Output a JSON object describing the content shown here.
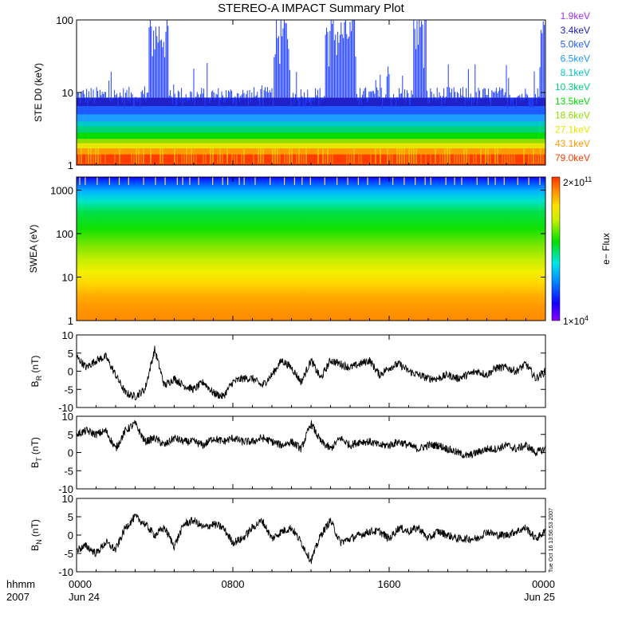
{
  "title": "STEREO-A IMPACT Summary Plot",
  "time_axis": {
    "corner_top": "hhmm",
    "corner_bottom": "2007",
    "ticks": [
      {
        "hour": 0,
        "top": "0000",
        "bottom": "Jun 24"
      },
      {
        "hour": 8,
        "top": "0800",
        "bottom": ""
      },
      {
        "hour": 16,
        "top": "1600",
        "bottom": ""
      },
      {
        "hour": 24,
        "top": "0000",
        "bottom": "Jun 25"
      }
    ]
  },
  "file_stamp": "Tue Oct 16 13:56:53 2007",
  "colorbar": {
    "label": "e− Flux",
    "max_label": "2×10",
    "max_exp": "11",
    "min_label": "1×10",
    "min_exp": "4"
  },
  "ste_legend": [
    {
      "label": "1.9keV",
      "color": "#9b30ff"
    },
    {
      "label": "3.4keV",
      "color": "#2020c8"
    },
    {
      "label": "5.0keV",
      "color": "#1e5aff"
    },
    {
      "label": "6.5keV",
      "color": "#1e9bff"
    },
    {
      "label": "8.1keV",
      "color": "#00c8c8"
    },
    {
      "label": "10.3keV",
      "color": "#00d27a"
    },
    {
      "label": "13.5keV",
      "color": "#00dc00"
    },
    {
      "label": "18.6keV",
      "color": "#8fdc00"
    },
    {
      "label": "27.1keV",
      "color": "#e6e600"
    },
    {
      "label": "43.1keV",
      "color": "#ff9b00"
    },
    {
      "label": "79.0keV",
      "color": "#ff3c00"
    }
  ],
  "chart_data": [
    {
      "type": "line",
      "ylabel": "STE D0 (keV)",
      "yscale": "log",
      "ylim": [
        1,
        100
      ],
      "yticks": [
        "1",
        "10",
        "100"
      ],
      "xlim_hours": [
        0,
        24
      ],
      "series_note": "multi-channel STE-D0 electron flux plotted as stacked colored spikes",
      "bands": [
        {
          "channel": "79.0keV",
          "level": 1.4
        },
        {
          "channel": "43.1keV",
          "level": 1.7
        },
        {
          "channel": "27.1keV",
          "level": 2.0
        },
        {
          "channel": "18.6keV",
          "level": 2.3
        },
        {
          "channel": "13.5keV",
          "level": 2.8
        },
        {
          "channel": "10.3keV",
          "level": 3.4
        },
        {
          "channel": "8.1keV",
          "level": 4.0
        },
        {
          "channel": "6.5keV",
          "level": 5.0
        },
        {
          "channel": "5.0keV",
          "level": 6.5
        },
        {
          "channel": "3.4keV",
          "level": 8.5
        }
      ],
      "spike_intervals_hours": [
        [
          3.7,
          4.7
        ],
        [
          10.1,
          10.9
        ],
        [
          12.7,
          14.3
        ],
        [
          17.2,
          17.9
        ],
        [
          23.7,
          24.0
        ]
      ]
    },
    {
      "type": "heatmap",
      "ylabel": "SWEA (eV)",
      "yscale": "log",
      "ylim": [
        1,
        2000
      ],
      "yticks": [
        "1",
        "10",
        "100",
        "1000"
      ],
      "xlim_hours": [
        0,
        24
      ],
      "zlim": [
        10000.0,
        200000000000.0
      ],
      "zlabel": "e− Flux"
    },
    {
      "type": "line",
      "ylabel": "B",
      "ylabel_sub": "R",
      "ylabel_unit": " (nT)",
      "ylim": [
        -10,
        10
      ],
      "yticks": [
        "-10",
        "-5",
        "0",
        "5",
        "10"
      ],
      "x_hours": [
        0,
        0.5,
        1,
        1.5,
        2,
        2.5,
        3,
        3.5,
        4,
        4.5,
        5,
        5.5,
        6,
        6.5,
        7,
        7.5,
        8,
        8.5,
        9,
        9.5,
        10,
        10.5,
        11,
        11.5,
        12,
        12.5,
        13,
        13.5,
        14,
        14.5,
        15,
        15.5,
        16,
        16.5,
        17,
        17.5,
        18,
        18.5,
        19,
        19.5,
        20,
        20.5,
        21,
        21.5,
        22,
        22.5,
        23,
        23.5,
        24
      ],
      "values": [
        4,
        1,
        3,
        4,
        -1,
        -6,
        -7,
        -5,
        6,
        -4,
        -2,
        -4,
        -5,
        -3,
        -6,
        -7,
        -3,
        -2,
        -2,
        -4,
        -1,
        3,
        1,
        -3,
        3,
        -2,
        3,
        2,
        1,
        2,
        3,
        -1,
        1,
        2,
        0,
        -1,
        -2,
        -2,
        -1,
        -2,
        -1,
        0,
        -1,
        1,
        1,
        0,
        2,
        -2,
        0
      ]
    },
    {
      "type": "line",
      "ylabel": "B",
      "ylabel_sub": "T",
      "ylabel_unit": " (nT)",
      "ylim": [
        -10,
        10
      ],
      "yticks": [
        "-10",
        "-5",
        "0",
        "5",
        "10"
      ],
      "x_hours": [
        0,
        0.5,
        1,
        1.5,
        2,
        2.5,
        3,
        3.5,
        4,
        4.5,
        5,
        5.5,
        6,
        6.5,
        7,
        7.5,
        8,
        8.5,
        9,
        9.5,
        10,
        10.5,
        11,
        11.5,
        12,
        12.5,
        13,
        13.5,
        14,
        14.5,
        15,
        15.5,
        16,
        16.5,
        17,
        17.5,
        18,
        18.5,
        19,
        19.5,
        20,
        20.5,
        21,
        21.5,
        22,
        22.5,
        23,
        23.5,
        24
      ],
      "values": [
        5,
        6,
        5,
        6,
        1,
        6,
        8,
        3,
        4,
        2,
        4,
        3,
        3,
        2,
        4,
        3,
        4,
        3,
        3,
        4,
        3,
        2,
        3,
        1,
        8,
        3,
        1,
        4,
        2,
        3,
        3,
        2,
        2,
        3,
        2,
        1,
        2,
        2,
        1,
        0,
        -1,
        0,
        1,
        1,
        2,
        1,
        2,
        0,
        1
      ]
    },
    {
      "type": "line",
      "ylabel": "B",
      "ylabel_sub": "N",
      "ylabel_unit": " (nT)",
      "ylim": [
        -10,
        10
      ],
      "yticks": [
        "-10",
        "-5",
        "0",
        "5",
        "10"
      ],
      "x_hours": [
        0,
        0.5,
        1,
        1.5,
        2,
        2.5,
        3,
        3.5,
        4,
        4.5,
        5,
        5.5,
        6,
        6.5,
        7,
        7.5,
        8,
        8.5,
        9,
        9.5,
        10,
        10.5,
        11,
        11.5,
        12,
        12.5,
        13,
        13.5,
        14,
        14.5,
        15,
        15.5,
        16,
        16.5,
        17,
        17.5,
        18,
        18.5,
        19,
        19.5,
        20,
        20.5,
        21,
        21.5,
        22,
        22.5,
        23,
        23.5,
        24
      ],
      "values": [
        -4,
        -3,
        -5,
        -2,
        -4,
        2,
        5,
        3,
        0,
        2,
        -3,
        3,
        4,
        2,
        3,
        2,
        -2,
        -1,
        2,
        4,
        -1,
        1,
        2,
        -2,
        -7,
        0,
        4,
        -2,
        -1,
        0,
        1,
        1,
        -1,
        2,
        1,
        2,
        -1,
        1,
        0,
        -1,
        -1,
        -1,
        1,
        0,
        0,
        1,
        2,
        -1,
        1
      ]
    }
  ]
}
